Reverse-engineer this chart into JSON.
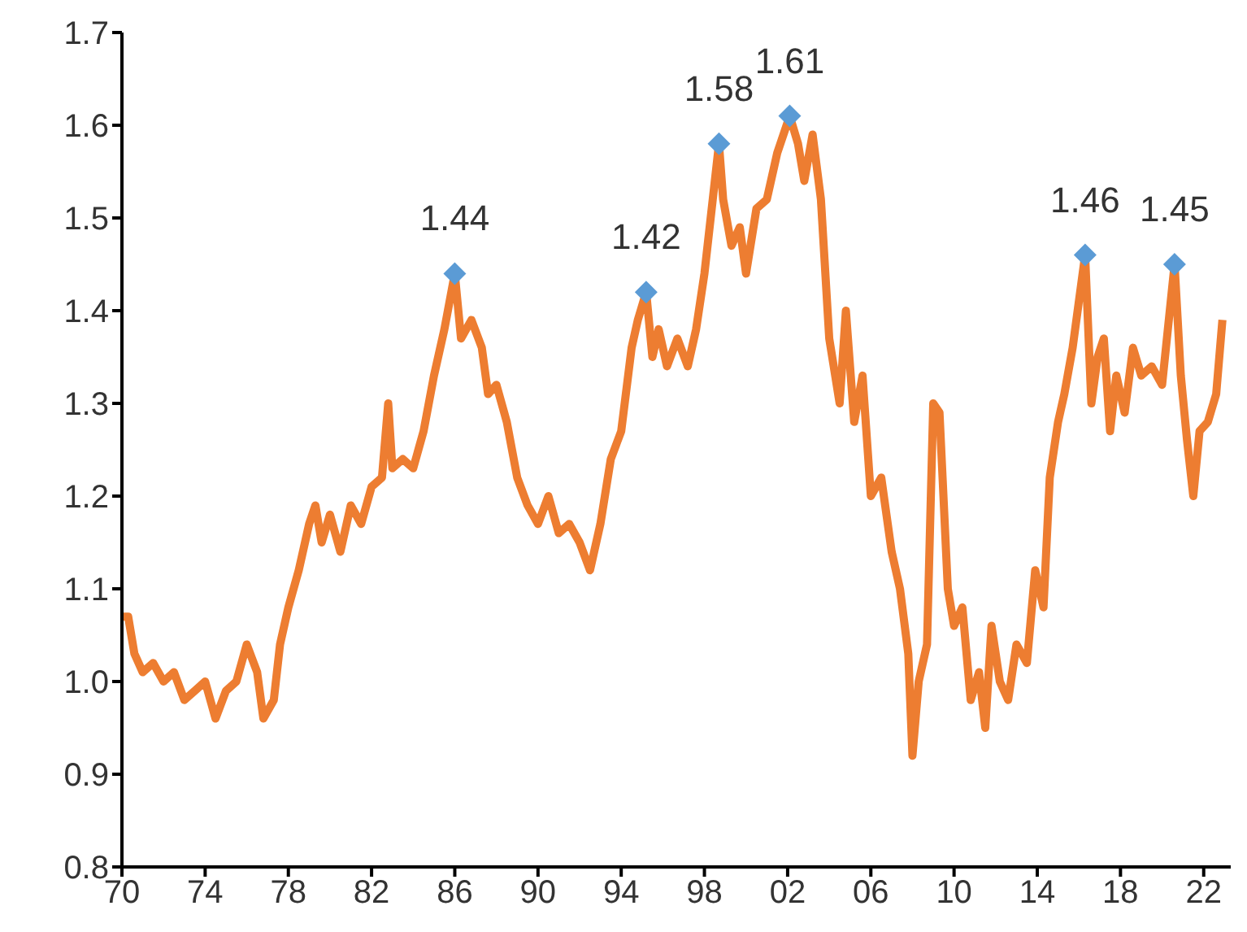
{
  "chart_data": {
    "type": "line",
    "xlim": [
      1970,
      2023.3
    ],
    "xticks": [
      {
        "value": 1970,
        "label": "70"
      },
      {
        "value": 1974,
        "label": "74"
      },
      {
        "value": 1978,
        "label": "78"
      },
      {
        "value": 1982,
        "label": "82"
      },
      {
        "value": 1986,
        "label": "86"
      },
      {
        "value": 1990,
        "label": "90"
      },
      {
        "value": 1994,
        "label": "94"
      },
      {
        "value": 1998,
        "label": "98"
      },
      {
        "value": 2002,
        "label": "02"
      },
      {
        "value": 2006,
        "label": "06"
      },
      {
        "value": 2010,
        "label": "10"
      },
      {
        "value": 2014,
        "label": "14"
      },
      {
        "value": 2018,
        "label": "18"
      },
      {
        "value": 2022,
        "label": "22"
      }
    ],
    "ylim": [
      0.8,
      1.7
    ],
    "yticks": [
      0.8,
      0.9,
      {
        "value": 1,
        "label": "1.0"
      },
      1.1,
      1.2,
      1.3,
      1.4,
      1.5,
      1.6,
      1.7
    ],
    "grid": false,
    "series": [
      {
        "color": "#ed7d31",
        "x": [
          1970,
          1970.3,
          1970.6,
          1971,
          1971.5,
          1972,
          1972.5,
          1973,
          1973.5,
          1974,
          1974.5,
          1975,
          1975.5,
          1976,
          1976.5,
          1976.8,
          1977.3,
          1977.6,
          1978,
          1978.5,
          1979,
          1979.3,
          1979.6,
          1980,
          1980.5,
          1981,
          1981.5,
          1982,
          1982.5,
          1982.8,
          1983,
          1983.5,
          1984,
          1984.5,
          1985,
          1985.5,
          1986,
          1986.3,
          1986.8,
          1987.3,
          1987.6,
          1988,
          1988.5,
          1989,
          1989.5,
          1990,
          1990.5,
          1991,
          1991.5,
          1992,
          1992.5,
          1993,
          1993.5,
          1994,
          1994.5,
          1994.8,
          1995.2,
          1995.5,
          1995.8,
          1996.2,
          1996.7,
          1997.2,
          1997.6,
          1998,
          1998.7,
          1998.9,
          1999.3,
          1999.7,
          2000,
          2000.5,
          2001,
          2001.5,
          2002.1,
          2002.5,
          2002.8,
          2003.2,
          2003.6,
          2004,
          2004.5,
          2004.8,
          2005.2,
          2005.6,
          2006,
          2006.5,
          2007,
          2007.4,
          2007.8,
          2008,
          2008.3,
          2008.7,
          2009,
          2009.3,
          2009.7,
          2010,
          2010.4,
          2010.8,
          2011.2,
          2011.5,
          2011.8,
          2012.2,
          2012.6,
          2013,
          2013.5,
          2013.9,
          2014.3,
          2014.6,
          2015,
          2015.3,
          2015.7,
          2016.3,
          2016.6,
          2016.9,
          2017.2,
          2017.5,
          2017.8,
          2018.2,
          2018.6,
          2019,
          2019.5,
          2020,
          2020.6,
          2020.9,
          2021.2,
          2021.5,
          2021.8,
          2022.2,
          2022.6,
          2022.9
        ],
        "values": [
          1.07,
          1.07,
          1.03,
          1.01,
          1.02,
          1,
          1.01,
          0.98,
          0.99,
          1,
          0.96,
          0.99,
          1,
          1.04,
          1.01,
          0.96,
          0.98,
          1.04,
          1.08,
          1.12,
          1.17,
          1.19,
          1.15,
          1.18,
          1.14,
          1.19,
          1.17,
          1.21,
          1.22,
          1.3,
          1.23,
          1.24,
          1.23,
          1.27,
          1.33,
          1.38,
          1.44,
          1.37,
          1.39,
          1.36,
          1.31,
          1.32,
          1.28,
          1.22,
          1.19,
          1.17,
          1.2,
          1.16,
          1.17,
          1.15,
          1.12,
          1.17,
          1.24,
          1.27,
          1.36,
          1.39,
          1.42,
          1.35,
          1.38,
          1.34,
          1.37,
          1.34,
          1.38,
          1.44,
          1.58,
          1.52,
          1.47,
          1.49,
          1.44,
          1.51,
          1.52,
          1.57,
          1.61,
          1.58,
          1.54,
          1.59,
          1.52,
          1.37,
          1.3,
          1.4,
          1.28,
          1.33,
          1.2,
          1.22,
          1.14,
          1.1,
          1.03,
          0.92,
          1,
          1.04,
          1.3,
          1.29,
          1.1,
          1.06,
          1.08,
          0.98,
          1.01,
          0.95,
          1.06,
          1,
          0.98,
          1.04,
          1.02,
          1.12,
          1.08,
          1.22,
          1.28,
          1.31,
          1.36,
          1.46,
          1.3,
          1.35,
          1.37,
          1.27,
          1.33,
          1.29,
          1.36,
          1.33,
          1.34,
          1.32,
          1.45,
          1.33,
          1.26,
          1.2,
          1.27,
          1.28,
          1.31,
          1.39
        ]
      },
      {
        "type": "scatter",
        "color": "#5b9bd5",
        "marker": "diamond",
        "x": [
          1986,
          1995.2,
          1998.7,
          2002.1,
          2016.3,
          2020.6
        ],
        "values": [
          1.44,
          1.42,
          1.58,
          1.61,
          1.46,
          1.45
        ],
        "value_labels": [
          "1.44",
          "1.42",
          "1.58",
          "1.61",
          "1.46",
          "1.45"
        ]
      }
    ]
  }
}
